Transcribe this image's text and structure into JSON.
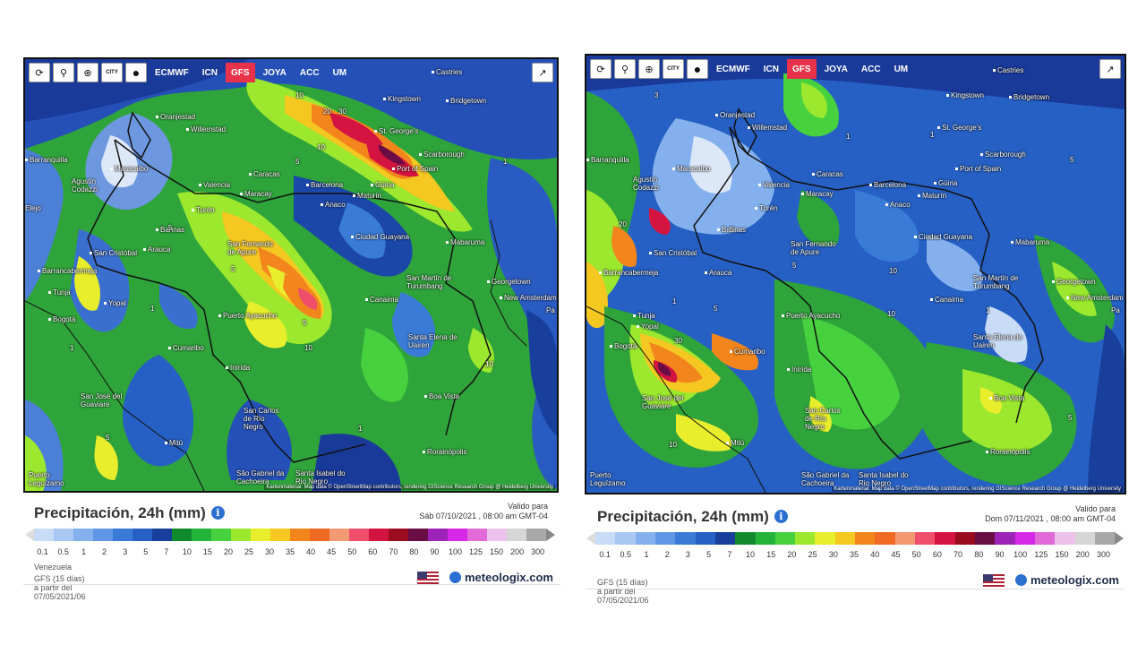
{
  "toolbar": {
    "models": [
      "ECMWF",
      "ICN",
      "GFS",
      "JOYA",
      "ACC",
      "UM"
    ],
    "active_model": "GFS",
    "icons": [
      "refresh-icon",
      "location-pin-icon",
      "zoom-icon",
      "city-toggle-icon",
      "dot-icon"
    ],
    "city_label": "CITY",
    "share_icon": "share-icon"
  },
  "colors": {
    "active_model": "#e8324a",
    "brand": "#1d2c4a"
  },
  "panels": [
    {
      "title": "Precipitación, 24h (mm)",
      "valid_label": "Valido para",
      "valid_date": "Sáb 07/10/2021 , 08:00 am GMT-04",
      "region": "Venezuela",
      "source": "GFS (15 días) a partir del 07/05/2021/06",
      "attribution": "Kartenmaterial: Map data © OpenStreetMap contributors, rendering GIScience Research Group @ Heidelberg University",
      "cities": [
        "Castries",
        "Kingstown",
        "Bridgetown",
        "Oranjestad",
        "St. George's",
        "Willemstad",
        "Scarborough",
        "Barranquilla",
        "Maracaibo",
        "Port of Spain",
        "Caracas",
        "Agustín Codazzi",
        "Valencia",
        "Barcelona",
        "Güiria",
        "Maracay",
        "Maturín",
        "Anaco",
        "Turén",
        "Ciudad Guayana",
        "Barinas",
        "Mabaruma",
        "San Fernando de Apure",
        "San Cristóbal",
        "Arauca",
        "Barrancabermeja",
        "Georgetown",
        "San Martín de Turumbang",
        "New Amsterdam",
        "Canaima",
        "Tunja",
        "Yopal",
        "Puerto Ayacucho",
        "Bogotá",
        "Santa Elena de Uairen",
        "Cumaribo",
        "Inírida",
        "Boa Vista",
        "San José del Guaviare",
        "San Carlos de Río Negro",
        "Mitú",
        "Rorainópolis",
        "São Gabriel da Cachoeira",
        "Santa Isabel do Rio Negro",
        "Puerto Leguízamo",
        "Elejo",
        "Pa"
      ],
      "contours": [
        "10",
        "20",
        "30",
        "10",
        "1",
        "5",
        "5",
        "1",
        "5",
        "10",
        "10",
        "5",
        "1",
        "1",
        "5"
      ]
    },
    {
      "title": "Precipitación, 24h (mm)",
      "valid_label": "Valido para",
      "valid_date": "Dom 07/11/2021 , 08:00 am GMT-04",
      "region": "",
      "source": "GFS (15 días) a partir del 07/05/2021/06",
      "attribution": "Kartenmaterial: Map data © OpenStreetMap contributors, rendering GIScience Research Group @ Heidelberg University",
      "cities": [
        "Castries",
        "Kingstown",
        "Bridgetown",
        "Oranjestad",
        "St. George's",
        "Willemstad",
        "Scarborough",
        "Barranquilla",
        "Maracaibo",
        "Port of Spain",
        "Caracas",
        "Agustín Codazzi",
        "Valencia",
        "Barcelona",
        "Güiria",
        "Maracay",
        "Maturín",
        "Anaco",
        "Turén",
        "Ciudad Guayana",
        "Barinas",
        "Mabaruma",
        "San Fernando de Apure",
        "San Cristóbal",
        "Arauca",
        "Barrancabermeja",
        "Georgetown",
        "San Martín de Turumbang",
        "New Amsterdam",
        "Canaima",
        "Tunja",
        "Yopal",
        "Puerto Ayacucho",
        "Bogotá",
        "Santa Elena de Uairen",
        "Cumaribo",
        "Inírida",
        "Boa Vista",
        "San José del Guaviare",
        "San Carlos de Río Negro",
        "Mitú",
        "Rorainópolis",
        "São Gabriel da Cachoeira",
        "Santa Isabel do Rio Negro",
        "Puerto Leguízamo",
        "Pa"
      ],
      "contours": [
        "20",
        "30",
        "10",
        "1",
        "5",
        "5",
        "1",
        "10",
        "5",
        "1",
        "5",
        "10",
        "1",
        "3",
        "5"
      ]
    }
  ],
  "scale": {
    "ticks": [
      "0.1",
      "0.5",
      "1",
      "2",
      "3",
      "5",
      "7",
      "10",
      "15",
      "20",
      "25",
      "30",
      "35",
      "40",
      "45",
      "50",
      "60",
      "70",
      "80",
      "90",
      "100",
      "125",
      "150",
      "200",
      "300"
    ],
    "colors": [
      "#c9dcf7",
      "#a8c8f3",
      "#84b1ee",
      "#5f97e6",
      "#3a7bd8",
      "#2660c4",
      "#173f9b",
      "#118a2e",
      "#25b43a",
      "#47d13e",
      "#9be82f",
      "#e8ee2c",
      "#f4c821",
      "#f2861d",
      "#f06a24",
      "#f39a73",
      "#ef4f6a",
      "#d41440",
      "#9b0d1e",
      "#6a0d44",
      "#9d22b7",
      "#d628e6",
      "#e26ad8",
      "#ecc2ec",
      "#d6d6d6",
      "#a8a8a8"
    ]
  },
  "brand": {
    "name": "meteologix.com",
    "flag_icon": "us-flag-icon",
    "globe_icon": "globe-icon"
  }
}
